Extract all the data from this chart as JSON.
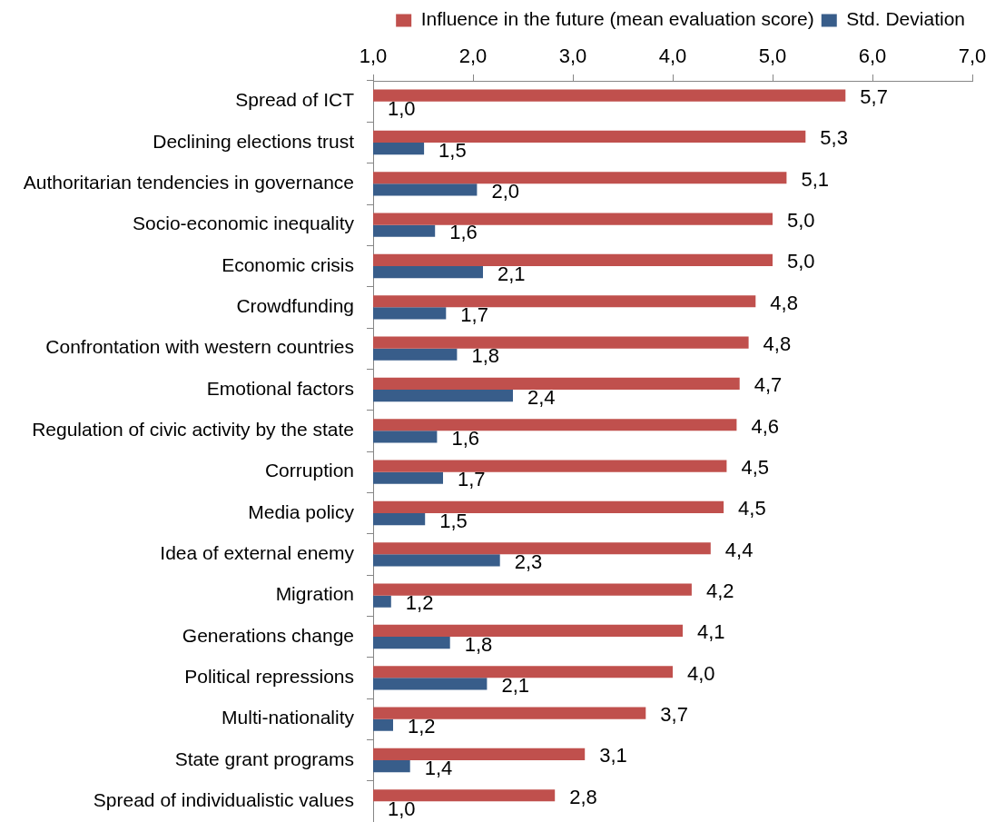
{
  "chart_data": {
    "type": "bar",
    "orientation": "horizontal",
    "legend": "top right",
    "categories": [
      "Spread of ICT",
      "Declining elections trust",
      "Authoritarian tendencies in governance",
      "Socio-economic inequality",
      "Economic crisis",
      "Crowdfunding",
      "Confrontation with western countries",
      "Emotional factors",
      "Regulation of civic activity by the state",
      "Corruption",
      "Media policy",
      "Idea of external enemy",
      "Migration",
      "Generations change",
      "Political repressions",
      "Multi-nationality",
      "State grant programs",
      "Spread of individualistic values"
    ],
    "series": [
      {
        "name": "Influence in the future (mean evaluation score)",
        "color": "#c0504d",
        "values": [
          5.73,
          5.33,
          5.14,
          5.0,
          5.0,
          4.83,
          4.76,
          4.67,
          4.64,
          4.54,
          4.51,
          4.38,
          4.19,
          4.1,
          4.0,
          3.73,
          3.12,
          2.82
        ],
        "value_labels": [
          "5,7",
          "5,3",
          "5,1",
          "5,0",
          "5,0",
          "4,8",
          "4,8",
          "4,7",
          "4,6",
          "4,5",
          "4,5",
          "4,4",
          "4,2",
          "4,1",
          "4,0",
          "3,7",
          "3,1",
          "2,8"
        ]
      },
      {
        "name": "Std. Deviation",
        "color": "#385d8a",
        "values": [
          1.0,
          1.51,
          2.04,
          1.62,
          2.1,
          1.73,
          1.84,
          2.4,
          1.64,
          1.7,
          1.52,
          2.27,
          1.18,
          1.77,
          2.14,
          1.2,
          1.37,
          1.0
        ],
        "value_labels": [
          "1,0",
          "1,5",
          "2,0",
          "1,6",
          "2,1",
          "1,7",
          "1,8",
          "2,4",
          "1,6",
          "1,7",
          "1,5",
          "2,3",
          "1,2",
          "1,8",
          "2,1",
          "1,2",
          "1,4",
          "1,0"
        ]
      }
    ],
    "xlim": [
      1,
      7
    ],
    "xticks": [
      {
        "value": 1,
        "label": "1,0"
      },
      {
        "value": 2,
        "label": "2,0"
      },
      {
        "value": 3,
        "label": "3,0"
      },
      {
        "value": 4,
        "label": "4,0"
      },
      {
        "value": 5,
        "label": "5,0"
      },
      {
        "value": 6,
        "label": "6,0"
      },
      {
        "value": 7,
        "label": "7,0"
      }
    ]
  }
}
